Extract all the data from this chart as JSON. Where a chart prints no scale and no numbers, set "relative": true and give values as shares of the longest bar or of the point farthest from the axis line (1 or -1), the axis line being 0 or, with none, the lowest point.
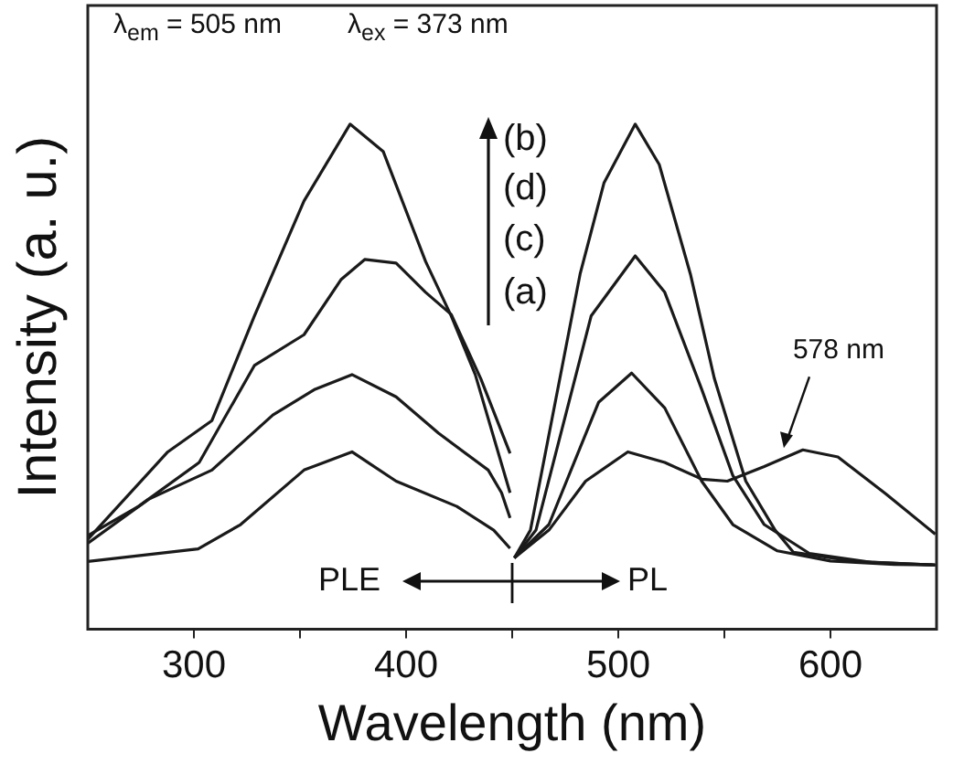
{
  "chart_data": {
    "type": "line",
    "xlabel": "Wavelength (nm)",
    "ylabel": "Intensity (a. u.)",
    "relative": true,
    "xlim": [
      250,
      650
    ],
    "xticks": [
      300,
      {
        "value": 350,
        "label": null
      },
      400,
      {
        "value": 450,
        "label": null
      },
      500,
      {
        "value": 550,
        "label": null
      },
      600
    ],
    "grid": false,
    "legend": false,
    "marker": "none",
    "line_style": "solid",
    "series": [
      {
        "color": "#1a1a1a",
        "x": [
          250,
          287.7,
          308.5,
          328.5,
          351.9,
          373.6,
          389.2,
          409.2,
          421.3,
          432.6,
          449
        ],
        "values": [
          0.178,
          0.351,
          0.413,
          0.62,
          0.848,
          1.0,
          0.946,
          0.728,
          0.62,
          0.504,
          0.27
        ]
      },
      {
        "color": "#1a1a1a",
        "x": [
          250,
          273.9,
          302.5,
          328.5,
          351.9,
          369.3,
          380.5,
          395.3,
          409.2,
          421.3,
          435.2,
          449
        ],
        "values": [
          0.185,
          0.243,
          0.33,
          0.522,
          0.583,
          0.692,
          0.732,
          0.725,
          0.667,
          0.623,
          0.496,
          0.348
        ]
      },
      {
        "color": "#1a1a1a",
        "x": [
          250,
          278.6,
          308.5,
          337.2,
          357.1,
          374.5,
          395.3,
          415.3,
          438.7,
          445,
          449
        ],
        "values": [
          0.17,
          0.257,
          0.315,
          0.424,
          0.475,
          0.504,
          0.46,
          0.388,
          0.315,
          0.27,
          0.22
        ]
      },
      {
        "color": "#1a1a1a",
        "x": [
          250,
          302,
          322,
          351.9,
          374.5,
          395.3,
          423.9,
          441.3,
          449
        ],
        "values": [
          0.134,
          0.159,
          0.207,
          0.315,
          0.351,
          0.293,
          0.243,
          0.196,
          0.16
        ]
      },
      {
        "color": "#1a1a1a",
        "x": [
          451,
          458.6,
          482,
          493.3,
          508,
          519.3,
          534,
          545.3,
          560.1,
          573.9,
          582.6,
          612.1,
          649.4
        ],
        "values": [
          0.141,
          0.196,
          0.703,
          0.884,
          1.0,
          0.92,
          0.703,
          0.496,
          0.293,
          0.196,
          0.152,
          0.134,
          0.127
        ]
      },
      {
        "color": "#1a1a1a",
        "x": [
          451,
          461.2,
          487.2,
          508,
          521.9,
          539.3,
          554,
          568.8,
          590,
          620,
          649.4
        ],
        "values": [
          0.141,
          0.196,
          0.62,
          0.739,
          0.667,
          0.475,
          0.304,
          0.207,
          0.15,
          0.132,
          0.127
        ]
      },
      {
        "color": "#1a1a1a",
        "x": [
          451,
          467.3,
          490.7,
          506.3,
          521.9,
          539.3,
          554,
          575,
          600,
          630,
          649.4
        ],
        "values": [
          0.141,
          0.207,
          0.449,
          0.507,
          0.438,
          0.293,
          0.207,
          0.155,
          0.135,
          0.128,
          0.127
        ]
      },
      {
        "color": "#1a1a1a",
        "x": [
          451,
          467.3,
          484.6,
          504.5,
          521.9,
          539.3,
          551.4,
          568.8,
          587,
          603.5,
          626,
          649.4
        ],
        "values": [
          0.141,
          0.196,
          0.293,
          0.351,
          0.33,
          0.297,
          0.293,
          0.322,
          0.355,
          0.341,
          0.268,
          0.188
        ]
      }
    ],
    "annotations": [
      "λ$_{em}$ = 505 nm",
      "λ$_{ex}$ = 373 nm",
      "(b)",
      "(d)",
      "(c)",
      "(a)",
      "PLE",
      "PL",
      {
        "text": "578 nm",
        "x": 578,
        "y": 0.355
      }
    ]
  }
}
